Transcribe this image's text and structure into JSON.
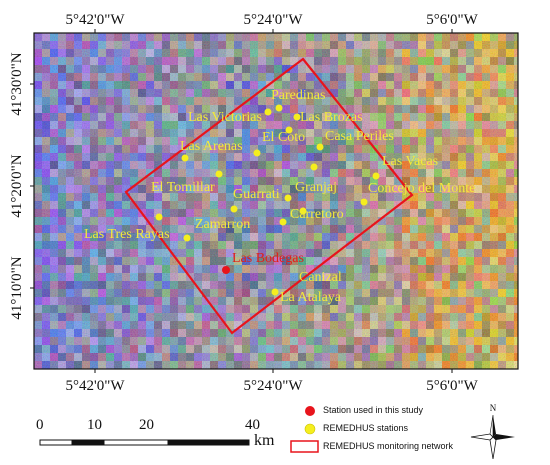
{
  "axes": {
    "top_ticks": [
      "5°42'0\"W",
      "5°24'0\"W",
      "5°6'0\"W"
    ],
    "bottom_ticks": [
      "5°42'0\"W",
      "5°24'0\"W",
      "5°6'0\"W"
    ],
    "left_ticks": [
      "41°30'0\"N",
      "41°20'0\"N",
      "41°10'0\"N"
    ]
  },
  "stations": [
    {
      "name": "Paredinas",
      "type": "remedhus"
    },
    {
      "name": "Las Victorias",
      "type": "remedhus"
    },
    {
      "name": "Las Brozas",
      "type": "remedhus"
    },
    {
      "name": "El Coto",
      "type": "remedhus"
    },
    {
      "name": "Casa Periles",
      "type": "remedhus"
    },
    {
      "name": "Las Arenas",
      "type": "remedhus"
    },
    {
      "name": "Las Vacas",
      "type": "remedhus"
    },
    {
      "name": "El Tomillar",
      "type": "remedhus"
    },
    {
      "name": "Granjaj",
      "type": "remedhus"
    },
    {
      "name": "Concejo del Monte",
      "type": "remedhus"
    },
    {
      "name": "Guarrati",
      "type": "remedhus"
    },
    {
      "name": "Carretoro",
      "type": "remedhus"
    },
    {
      "name": "Zamarron",
      "type": "remedhus"
    },
    {
      "name": "Las Tres Rayas",
      "type": "remedhus"
    },
    {
      "name": "Las Bodegas",
      "type": "study"
    },
    {
      "name": "Canizal",
      "type": "remedhus"
    },
    {
      "name": "La Atalaya",
      "type": "remedhus"
    }
  ],
  "scale_bar": {
    "labels": [
      "0",
      "10",
      "20",
      "40"
    ],
    "unit": "km"
  },
  "legend": {
    "items": [
      {
        "label": "Station used in this study",
        "color": "#e8141c"
      },
      {
        "label": "REMEDHUS stations",
        "color": "#f5ee1e"
      },
      {
        "label": "REMEDHUS monitoring network",
        "color": "#e8141c"
      }
    ]
  },
  "north_arrow": {
    "label": "N"
  },
  "colors": {
    "network_outline": "#e8141c",
    "remedhus_marker": "#f5ee1e",
    "study_marker": "#e8141c",
    "label_yellow": "#f2ea3a"
  }
}
